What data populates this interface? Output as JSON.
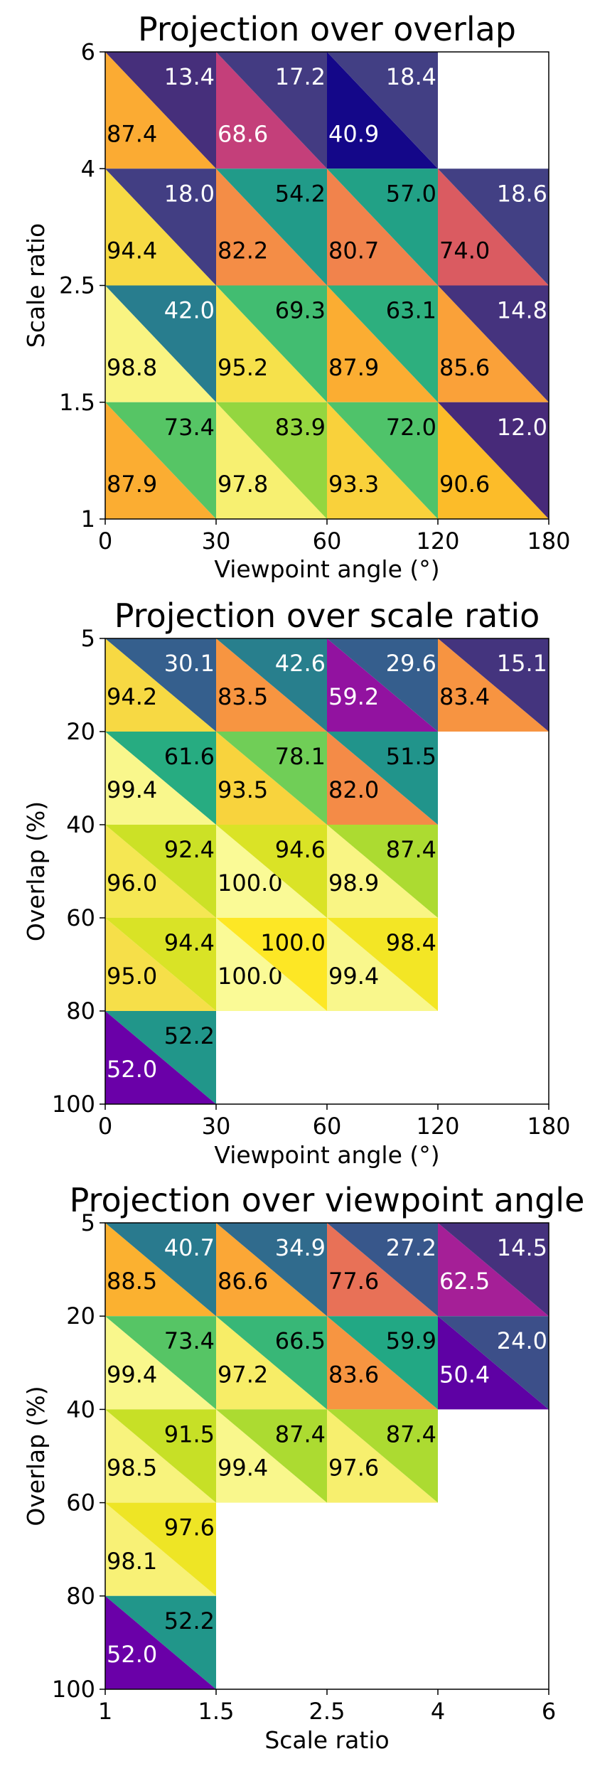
{
  "chart_data": [
    {
      "type": "heatmap",
      "title": "Projection over overlap",
      "xlabel": "Viewpoint angle (°)",
      "ylabel": "Scale ratio",
      "x_ticks": [
        "0",
        "30",
        "60",
        "120",
        "180"
      ],
      "y_ticks": [
        "1",
        "1.5",
        "2.5",
        "4",
        "6"
      ],
      "y_ticks_top_to_bottom": [
        "6",
        "4",
        "2.5",
        "1.5",
        "1"
      ],
      "rows": [
        "4-6",
        "2.5-4",
        "1.5-2.5",
        "1-1.5"
      ],
      "cols": [
        "0-30",
        "30-60",
        "60-120",
        "120-180"
      ],
      "lower_values": [
        [
          87.4,
          68.6,
          40.9,
          null
        ],
        [
          94.4,
          82.2,
          80.7,
          74.0
        ],
        [
          98.8,
          95.2,
          87.9,
          85.6
        ],
        [
          87.9,
          97.8,
          93.3,
          90.6
        ]
      ],
      "upper_values": [
        [
          13.4,
          17.2,
          18.4,
          null
        ],
        [
          18.0,
          54.2,
          57.0,
          18.6
        ],
        [
          42.0,
          69.3,
          63.1,
          14.8
        ],
        [
          73.4,
          83.9,
          72.0,
          12.0
        ]
      ]
    },
    {
      "type": "heatmap",
      "title": "Projection over scale ratio",
      "xlabel": "Viewpoint angle (°)",
      "ylabel": "Overlap (%)",
      "x_ticks": [
        "0",
        "30",
        "60",
        "120",
        "180"
      ],
      "y_ticks_top_to_bottom": [
        "5",
        "20",
        "40",
        "60",
        "80",
        "100"
      ],
      "rows": [
        "5-20",
        "20-40",
        "40-60",
        "60-80",
        "80-100"
      ],
      "cols": [
        "0-30",
        "30-60",
        "60-120",
        "120-180"
      ],
      "lower_values": [
        [
          94.2,
          83.5,
          59.2,
          83.4
        ],
        [
          99.4,
          93.5,
          82.0,
          null
        ],
        [
          96.0,
          100.0,
          98.9,
          null
        ],
        [
          95.0,
          100.0,
          99.4,
          null
        ],
        [
          52.0,
          null,
          null,
          null
        ]
      ],
      "upper_values": [
        [
          30.1,
          42.6,
          29.6,
          15.1
        ],
        [
          61.6,
          78.1,
          51.5,
          null
        ],
        [
          92.4,
          94.6,
          87.4,
          null
        ],
        [
          94.4,
          100.0,
          98.4,
          null
        ],
        [
          52.2,
          null,
          null,
          null
        ]
      ]
    },
    {
      "type": "heatmap",
      "title": "Projection over viewpoint angle",
      "xlabel": "Scale ratio",
      "ylabel": "Overlap (%)",
      "x_ticks": [
        "1",
        "1.5",
        "2.5",
        "4",
        "6"
      ],
      "y_ticks_top_to_bottom": [
        "5",
        "20",
        "40",
        "60",
        "80",
        "100"
      ],
      "rows": [
        "5-20",
        "20-40",
        "40-60",
        "60-80",
        "80-100"
      ],
      "cols": [
        "1-1.5",
        "1.5-2.5",
        "2.5-4",
        "4-6"
      ],
      "lower_values": [
        [
          88.5,
          86.6,
          77.6,
          62.5
        ],
        [
          99.4,
          97.2,
          83.6,
          50.4
        ],
        [
          98.5,
          99.4,
          97.6,
          null
        ],
        [
          98.1,
          null,
          null,
          null
        ],
        [
          52.0,
          null,
          null,
          null
        ]
      ],
      "upper_values": [
        [
          40.7,
          34.9,
          27.2,
          14.5
        ],
        [
          73.4,
          66.5,
          59.9,
          24.0
        ],
        [
          91.5,
          87.4,
          87.4,
          null
        ],
        [
          97.6,
          null,
          null,
          null
        ],
        [
          52.2,
          null,
          null,
          null
        ]
      ]
    }
  ]
}
